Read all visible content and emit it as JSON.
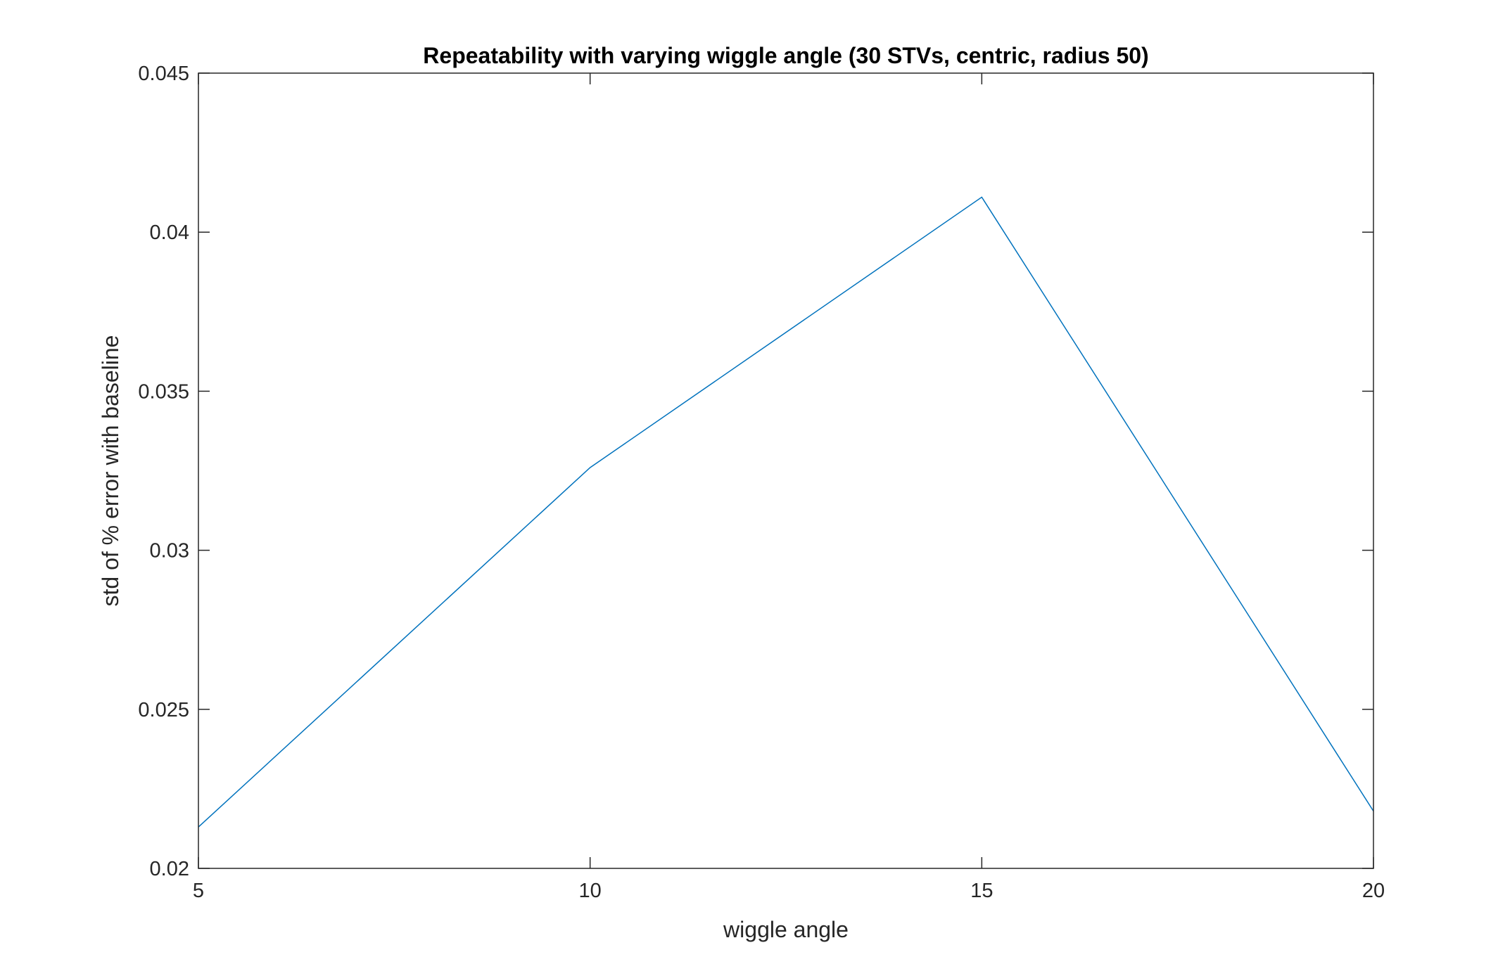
{
  "chart_data": {
    "type": "line",
    "title": "Repeatability with varying wiggle angle (30 STVs, centric, radius 50)",
    "xlabel": "wiggle angle",
    "ylabel": "std of % error with baseline",
    "xlim": [
      5,
      20
    ],
    "ylim": [
      0.02,
      0.045
    ],
    "xticks": [
      5,
      10,
      15,
      20
    ],
    "xtick_labels": [
      "5",
      "10",
      "15",
      "20"
    ],
    "yticks": [
      0.02,
      0.025,
      0.03,
      0.035,
      0.04,
      0.045
    ],
    "ytick_labels": [
      "0.02",
      "0.025",
      "0.03",
      "0.035",
      "0.04",
      "0.045"
    ],
    "grid": false,
    "legend": "none",
    "series": [
      {
        "x": [
          5,
          10,
          15,
          20
        ],
        "values": [
          0.0213,
          0.0326,
          0.0411,
          0.0218
        ],
        "color": "#0072BD"
      }
    ]
  }
}
